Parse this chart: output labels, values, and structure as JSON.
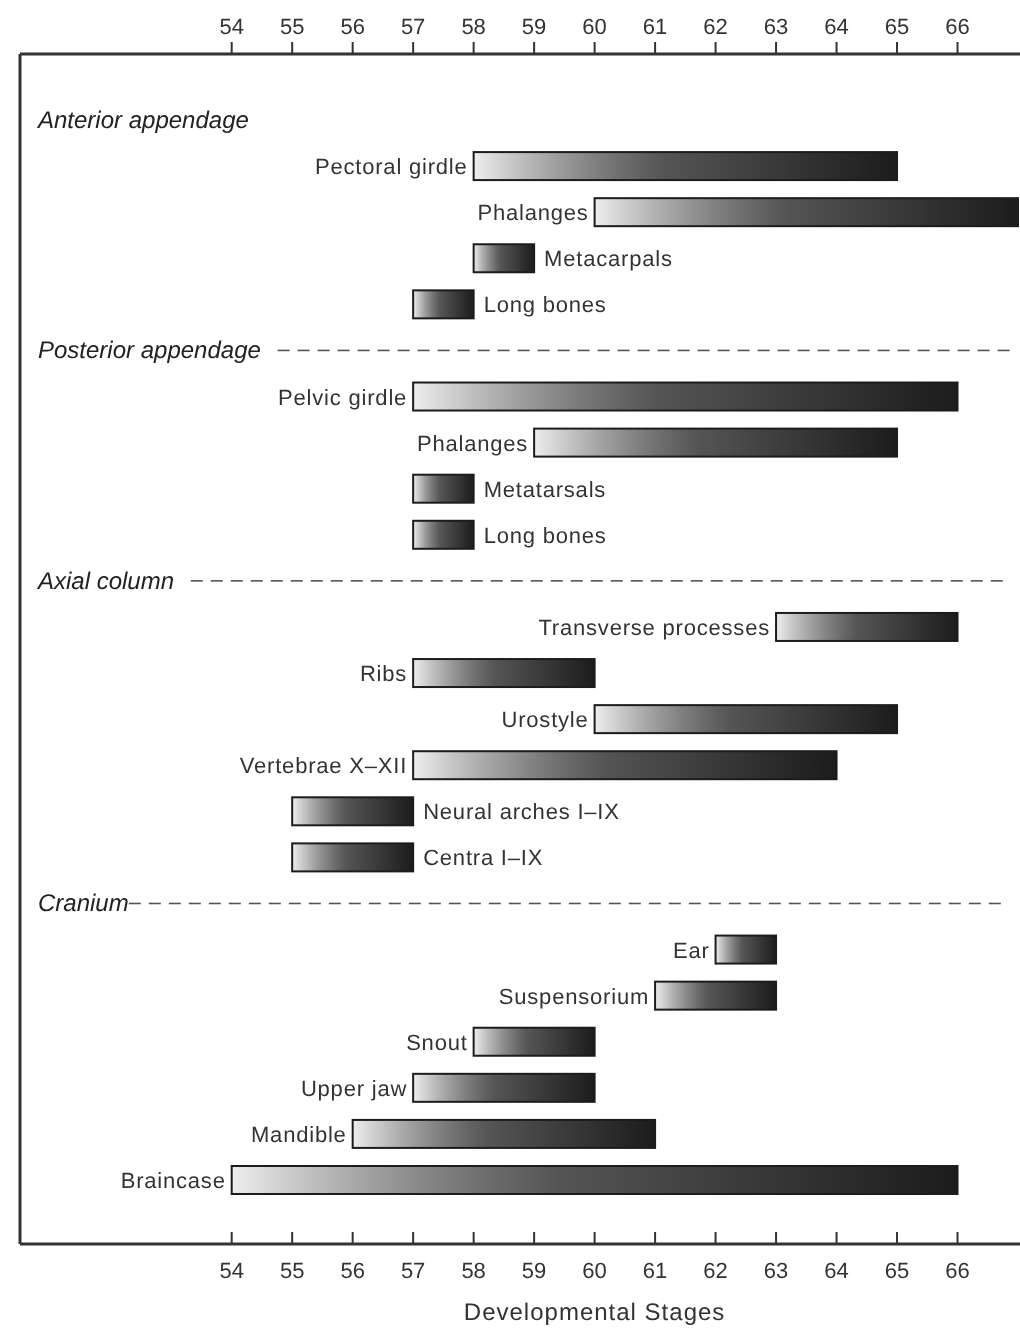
{
  "chart_data": {
    "type": "bar",
    "orientation": "horizontal",
    "xlabel": "Developmental Stages",
    "categories": [
      "Anterior appendage",
      "Pectoral girdle",
      "Phalanges",
      "Metacarpals",
      "Long bones",
      "Posterior appendage",
      "Pelvic girdle",
      "Phalanges",
      "Metatarsals",
      "Long bones",
      "Axial column",
      "Transverse processes",
      "Ribs",
      "Urostyle",
      "Vertebrae X–XII",
      "Neural arches I–IX",
      "Centra I–IX",
      "Cranium",
      "Ear",
      "Suspensorium",
      "Snout",
      "Upper jaw",
      "Mandible",
      "Braincase"
    ],
    "base": [
      null,
      58,
      60,
      58,
      57,
      null,
      57,
      59,
      57,
      57,
      null,
      63,
      57,
      60,
      57,
      55,
      55,
      null,
      62,
      61,
      58,
      57,
      56,
      54
    ],
    "values": [
      null,
      7,
      7,
      1,
      1,
      null,
      9,
      6,
      1,
      1,
      null,
      3,
      3,
      5,
      7,
      2,
      2,
      null,
      1,
      2,
      2,
      3,
      5,
      12
    ],
    "color": "#1c1c1c",
    "xlim": [
      50.5,
      67
    ],
    "xticks": [
      54,
      55,
      56,
      57,
      58,
      59,
      60,
      61,
      62,
      63,
      64,
      65,
      66
    ],
    "x2lim": [
      50.5,
      67
    ],
    "x2ticks": [
      54,
      55,
      56,
      57,
      58,
      59,
      60,
      61,
      62,
      63,
      64,
      65,
      66
    ]
  }
}
